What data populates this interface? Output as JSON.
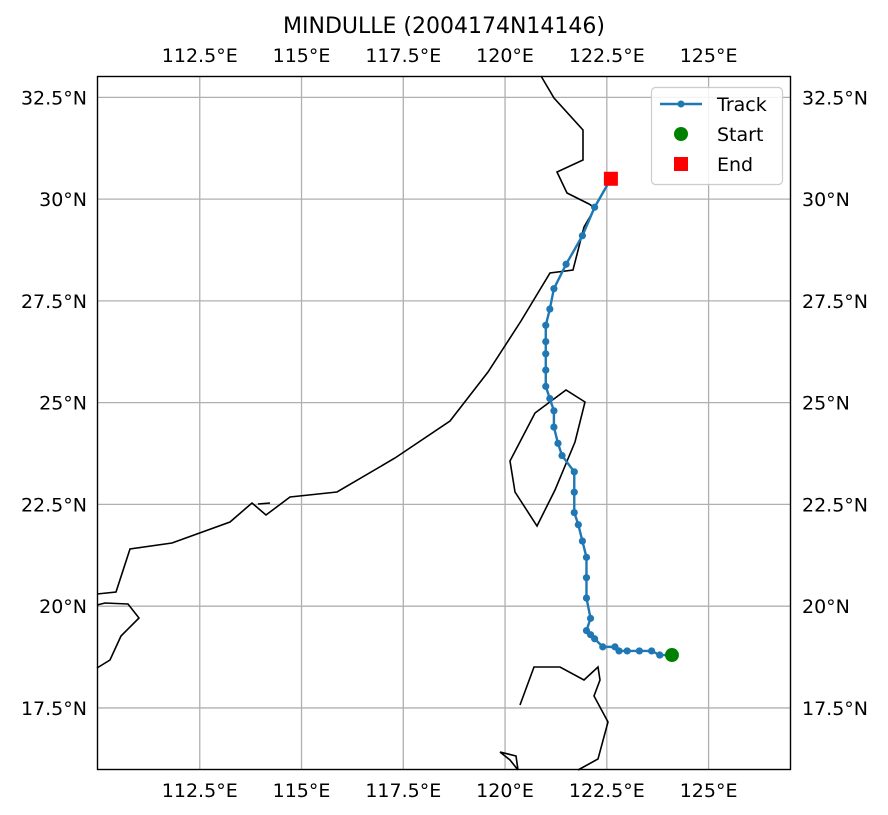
{
  "chart_data": {
    "type": "map",
    "title": "MINDULLE (2004174N14146)",
    "projection": "PlateCarree",
    "xlim": [
      110.0,
      127.0
    ],
    "ylim": [
      16.0,
      33.0
    ],
    "x_ticks": [
      112.5,
      115,
      117.5,
      120,
      122.5,
      125
    ],
    "x_tick_labels": [
      "112.5°E",
      "115°E",
      "117.5°E",
      "120°E",
      "122.5°E",
      "125°E"
    ],
    "y_ticks": [
      17.5,
      20,
      22.5,
      25,
      27.5,
      30,
      32.5
    ],
    "y_tick_labels": [
      "17.5°N",
      "20°N",
      "22.5°N",
      "25°N",
      "27.5°N",
      "30°N",
      "32.5°N"
    ],
    "grid": true,
    "legend": {
      "position": "top-right",
      "entries": [
        "Track",
        "Start",
        "End"
      ]
    },
    "colors": {
      "track": "#1f77b4",
      "start": "#008000",
      "end": "#ff0000",
      "grid": "#b0b0b0",
      "coast": "#000000"
    },
    "series": [
      {
        "name": "Track",
        "lon": [
          124.1,
          123.8,
          123.6,
          123.3,
          123.0,
          122.8,
          122.7,
          122.4,
          122.2,
          122.1,
          122.0,
          122.1,
          122.0,
          122.0,
          122.0,
          121.9,
          121.8,
          121.7,
          121.7,
          121.7,
          121.4,
          121.3,
          121.2,
          121.2,
          121.1,
          121.0,
          121.0,
          121.0,
          121.0,
          121.0,
          121.1,
          121.2,
          121.5,
          121.9,
          122.2,
          122.6
        ],
        "lat": [
          18.8,
          18.8,
          18.9,
          18.9,
          18.9,
          18.9,
          19.0,
          19.0,
          19.2,
          19.3,
          19.4,
          19.7,
          20.2,
          20.7,
          21.2,
          21.6,
          22.0,
          22.3,
          22.8,
          23.3,
          23.7,
          24.0,
          24.4,
          24.8,
          25.1,
          25.4,
          25.8,
          26.2,
          26.5,
          26.9,
          27.3,
          27.8,
          28.4,
          29.1,
          29.8,
          30.5
        ]
      }
    ],
    "start_point": {
      "lon": 124.1,
      "lat": 18.8
    },
    "end_point": {
      "lon": 122.6,
      "lat": 30.5
    }
  }
}
